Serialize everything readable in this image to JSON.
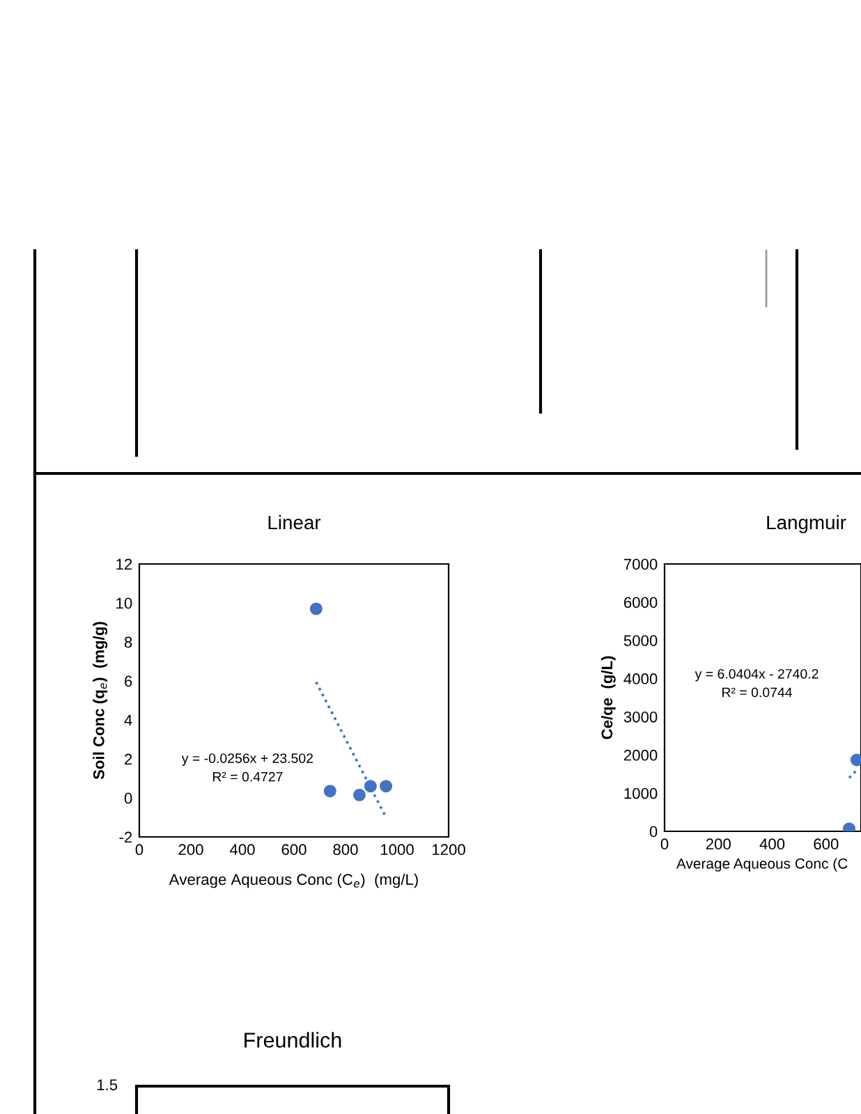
{
  "chart_data": [
    {
      "type": "scatter",
      "title": "Linear",
      "xlabel": "Average Aqueous Conc (C$_{e}$)  (mg/L)",
      "ylabel": "Soil Conc (q$_{e}$)  (mg/g)",
      "x": [
        686,
        740,
        854,
        897,
        957
      ],
      "xlim": [
        0,
        1200
      ],
      "xticks": [
        0,
        200,
        400,
        600,
        800,
        1000,
        1200
      ],
      "ylim": [
        -2,
        12
      ],
      "yticks": [
        -2,
        0,
        2,
        4,
        6,
        8,
        10,
        12
      ],
      "grid": false,
      "legend": false,
      "series": [
        {
          "color": "#4472c4",
          "marker": "circle",
          "values": [
            9.7,
            0.35,
            0.15,
            0.6,
            0.6
          ]
        },
        {
          "type": "line",
          "line_style": "dotted",
          "color": "#4472c4",
          "x": [
            686,
            957
          ],
          "values": [
            5.94,
            -0.99
          ]
        }
      ],
      "annotations": [
        "y = -0.0256x + 23.502\nR² = 0.4727"
      ]
    },
    {
      "type": "scatter",
      "title": "Langmuir",
      "xlabel": "Average Aqueous Conc (C",
      "ylabel": "Ce/qe  (g/L)",
      "x": [
        686,
        714
      ],
      "xlim": [
        0,
        730
      ],
      "xticks": [
        0,
        200,
        400,
        600
      ],
      "ylim": [
        0,
        7000
      ],
      "yticks": [
        0,
        1000,
        2000,
        3000,
        4000,
        5000,
        6000,
        7000
      ],
      "grid": false,
      "legend": false,
      "series": [
        {
          "color": "#4472c4",
          "marker": "circle",
          "values": [
            70,
            1870
          ]
        },
        {
          "type": "line",
          "line_style": "dotted",
          "color": "#4472c4",
          "x": [
            686,
            714
          ],
          "values": [
            1400,
            1600
          ]
        }
      ],
      "annotations": [
        "y = 6.0404x - 2740.2\nR² = 0.0744"
      ]
    },
    {
      "type": "other",
      "title": "Freundlich",
      "annotations": [
        "1.5"
      ]
    }
  ]
}
